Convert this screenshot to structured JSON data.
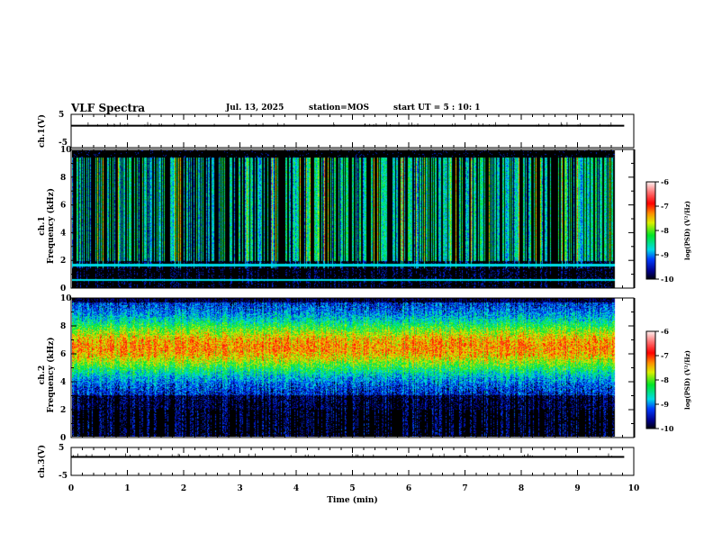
{
  "header": {
    "title": "VLF Spectra",
    "date": "Jul. 13, 2025",
    "station": "station=MOS",
    "start": "start UT =  5 : 10: 1"
  },
  "colors": {
    "background": "#ffffff",
    "axis": "#000000"
  },
  "chart_data": [
    {
      "type": "line",
      "name": "ch1-waveform",
      "ylabel": "ch.1(V)",
      "ylim": [
        -5,
        5
      ],
      "yticks": [
        "5",
        "-5"
      ],
      "description_value": "flat near 1.6 V",
      "level": 1.6,
      "xlim": [
        0,
        10
      ]
    },
    {
      "type": "heatmap",
      "name": "ch1-spectrogram",
      "ylabel": "ch.1\nFrequency (kHz)",
      "ylim": [
        0,
        10
      ],
      "yticks": [
        "0",
        "2",
        "4",
        "6",
        "8",
        "10"
      ],
      "xlim": [
        0,
        10
      ],
      "data_end_min": 9.83,
      "lines_khz": [
        1.7,
        0.6
      ],
      "colorbar": {
        "label": "log(PSD) (V²/Hz)",
        "range": [
          -10,
          -6
        ],
        "ticks": [
          "-6",
          "-7",
          "-8",
          "-9",
          "-10"
        ]
      }
    },
    {
      "type": "heatmap",
      "name": "ch2-spectrogram",
      "ylabel": "ch.2\nFrequency (kHz)",
      "ylim": [
        0,
        10
      ],
      "yticks": [
        "0",
        "2",
        "4",
        "6",
        "8",
        "10"
      ],
      "xlim": [
        0,
        10
      ],
      "data_end_min": 9.83,
      "peak_band_khz": [
        5.5,
        7.5
      ],
      "colorbar": {
        "label": "log(PSD) (V²/Hz)",
        "range": [
          -10,
          -6
        ],
        "ticks": [
          "-6",
          "-7",
          "-8",
          "-9",
          "-10"
        ]
      }
    },
    {
      "type": "line",
      "name": "ch3-waveform",
      "ylabel": "ch.3(V)",
      "ylim": [
        -5,
        5
      ],
      "yticks": [
        "5",
        "-5"
      ],
      "level": 1.6,
      "xlim": [
        0,
        10
      ],
      "xlabel": "Time (min)",
      "xticks": [
        "0",
        "1",
        "2",
        "3",
        "4",
        "5",
        "6",
        "7",
        "8",
        "9",
        "10"
      ]
    }
  ]
}
